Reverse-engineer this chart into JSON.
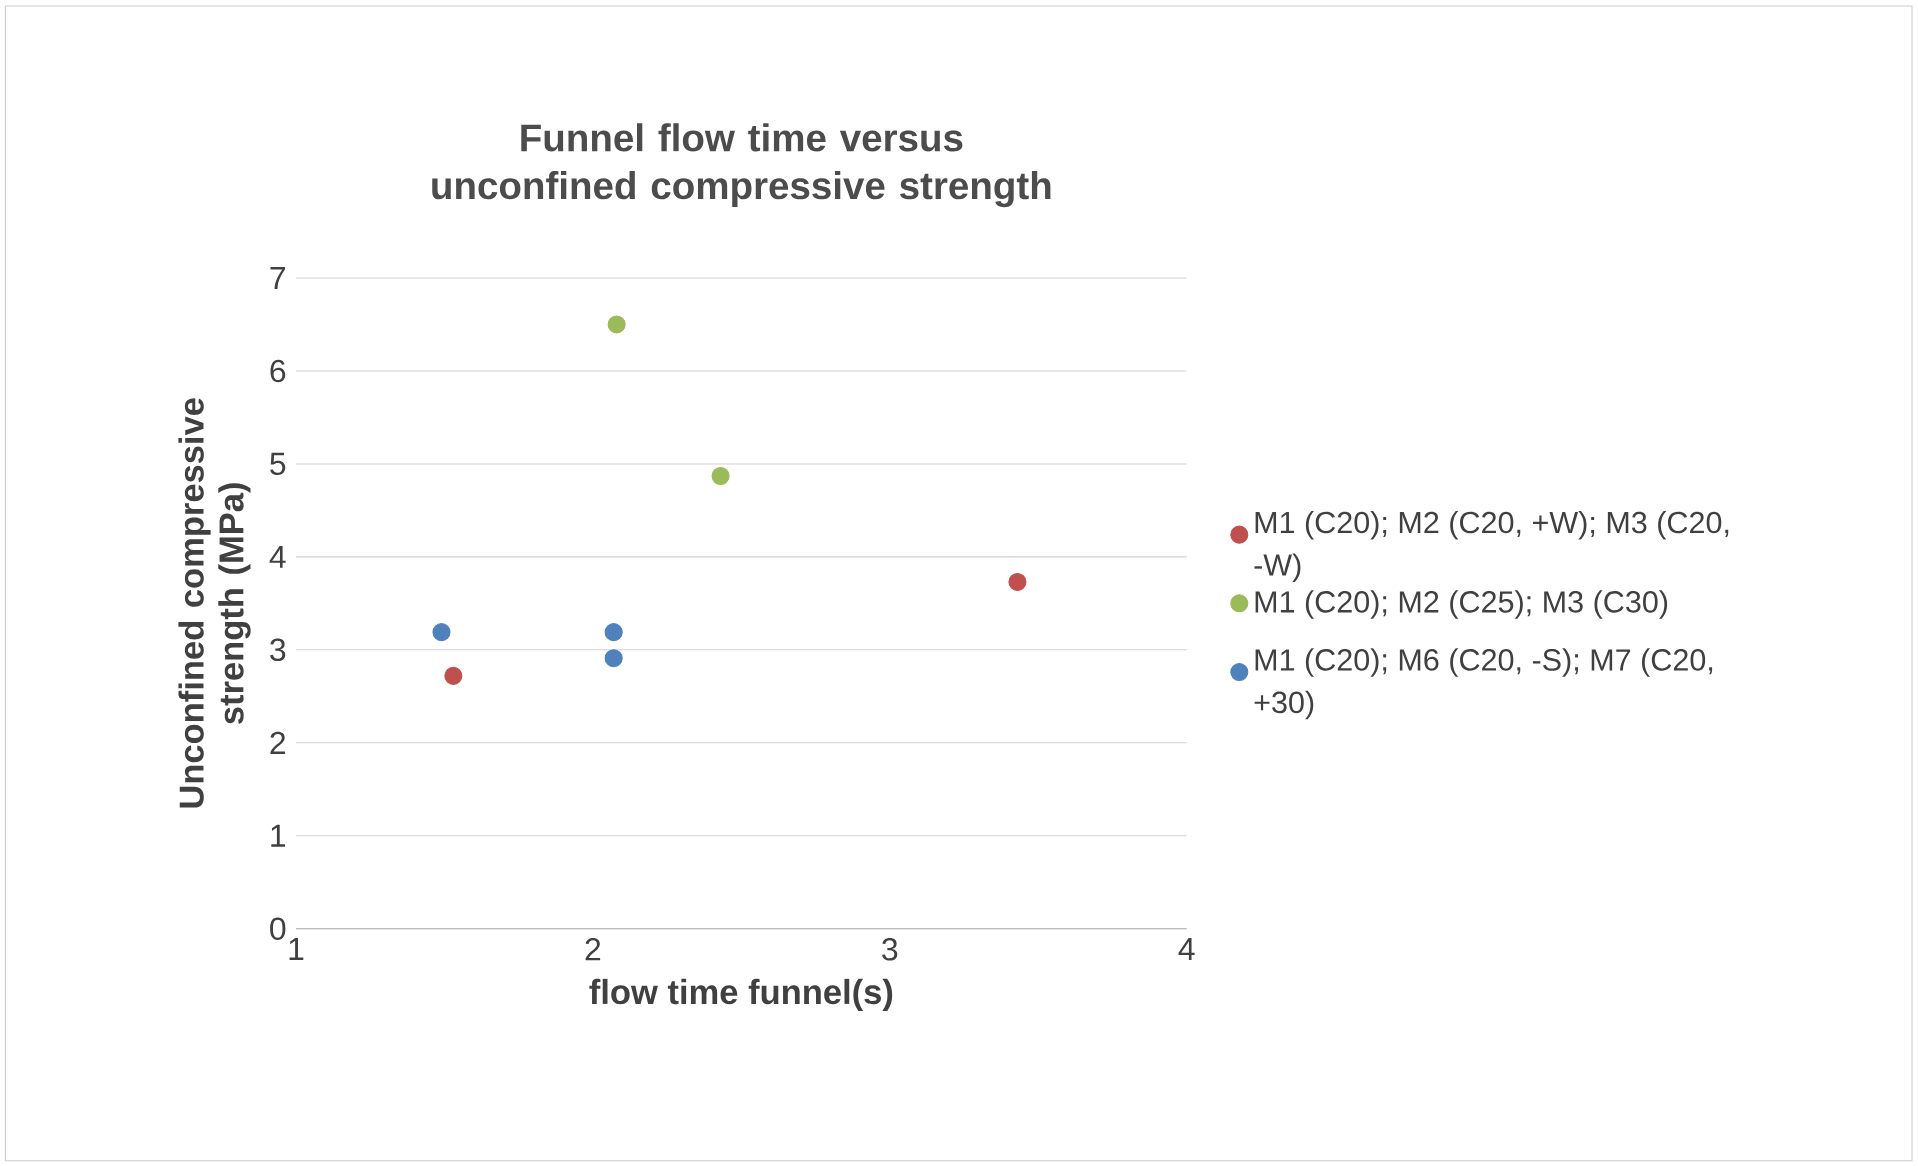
{
  "chart_data": {
    "type": "scatter",
    "title": "Funnel flow time versus unconfined compressive strength",
    "xlabel": "flow time funnel(s)",
    "ylabel": "Unconfined compressive strength (MPa)",
    "series": [
      {
        "name": "M1 (C20); M2 (C20, +W); M3 (C20, -W)",
        "color": "#c0504d",
        "x": [
          1.53,
          3.43
        ],
        "values": [
          2.72,
          3.73
        ]
      },
      {
        "name": "M1 (C20); M2 (C25); M3 (C30)",
        "color": "#9bbb59",
        "x": [
          2.08,
          2.43
        ],
        "values": [
          6.5,
          4.87
        ]
      },
      {
        "name": "M1 (C20); M6 (C20, -S); M7 (C20, +30)",
        "color": "#4f81bd",
        "x": [
          1.49,
          2.07,
          2.07
        ],
        "values": [
          3.19,
          3.19,
          2.91
        ]
      }
    ],
    "xlim": [
      1,
      4
    ],
    "xticks": [
      1,
      2,
      3,
      4
    ],
    "ylim": [
      0,
      7
    ],
    "yticks": [
      0,
      1,
      2,
      3,
      4,
      5,
      6,
      7
    ],
    "grid": "y",
    "legend": "right",
    "marker": "circle"
  }
}
